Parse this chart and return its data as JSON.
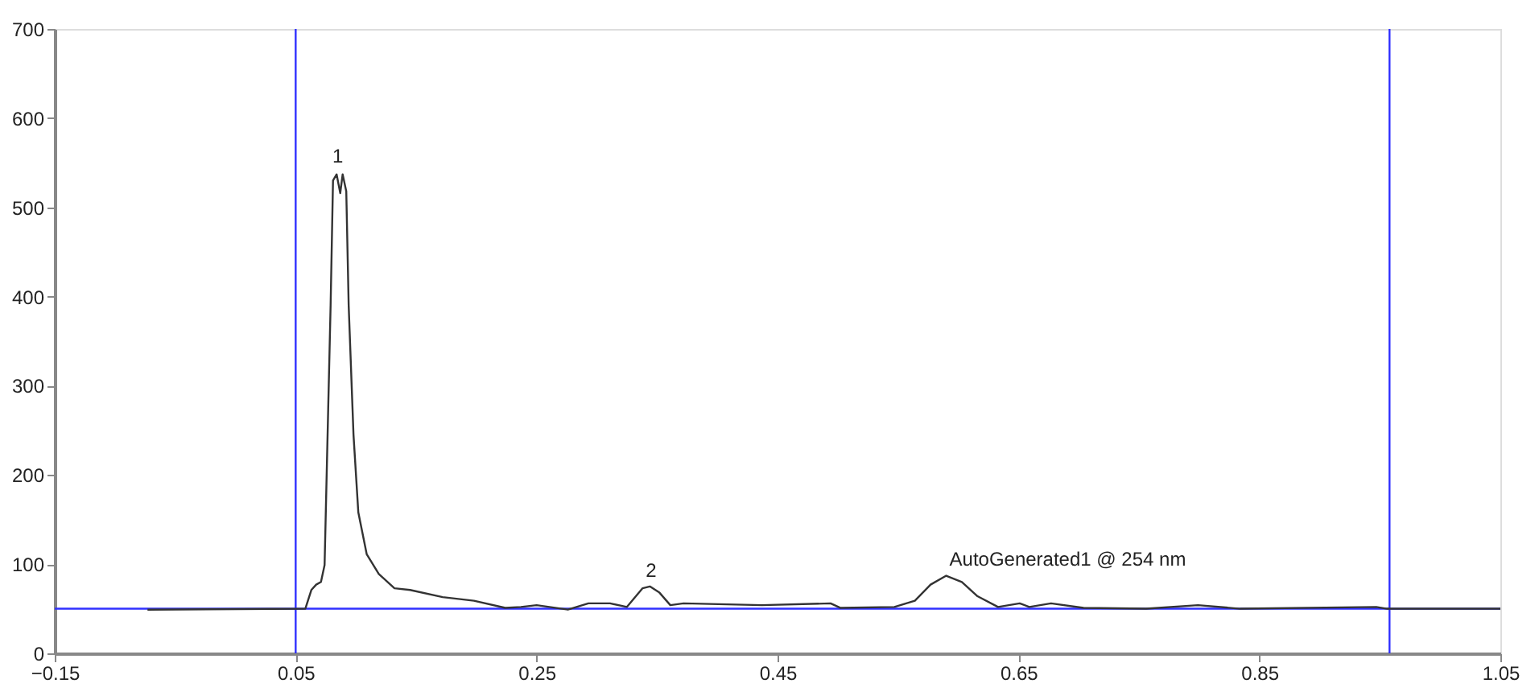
{
  "chart_data": {
    "type": "line",
    "x": [
      -0.073,
      0.058,
      0.063,
      0.067,
      0.071,
      0.074,
      0.076,
      0.079,
      0.081,
      0.084,
      0.087,
      0.089,
      0.092,
      0.094,
      0.098,
      0.102,
      0.109,
      0.119,
      0.132,
      0.145,
      0.172,
      0.198,
      0.224,
      0.237,
      0.25,
      0.276,
      0.293,
      0.311,
      0.325,
      0.338,
      0.344,
      0.352,
      0.361,
      0.372,
      0.437,
      0.494,
      0.502,
      0.547,
      0.564,
      0.577,
      0.59,
      0.603,
      0.616,
      0.633,
      0.651,
      0.659,
      0.677,
      0.704,
      0.756,
      0.799,
      0.834,
      0.947,
      0.956,
      1.05
    ],
    "series": [
      {
        "color": "#333333",
        "values": [
          49,
          50,
          71,
          77,
          80,
          99,
          216,
          390,
          530,
          537,
          516,
          537,
          518,
          390,
          245,
          158,
          111,
          89,
          73,
          71,
          63,
          59,
          51,
          52,
          54,
          49,
          56,
          56,
          52,
          73,
          75,
          68,
          54,
          56,
          54,
          56,
          51,
          52,
          59,
          77,
          87,
          80,
          64,
          52,
          56,
          52,
          56,
          51,
          50,
          54,
          50,
          52,
          50,
          50
        ]
      }
    ],
    "xlim": [
      -0.15,
      1.05
    ],
    "xticks": [
      -0.15,
      0.05,
      0.25,
      0.45,
      0.65,
      0.85,
      1.05
    ],
    "ylim": [
      0,
      700
    ],
    "yticks": [
      0,
      100,
      200,
      300,
      400,
      500,
      600,
      700
    ],
    "grid": false,
    "marker": "none",
    "line_style": "solid",
    "ref_lines": [
      {
        "axis": "x",
        "value": 0.05,
        "color": "#3030ff"
      },
      {
        "axis": "x",
        "value": 0.958,
        "color": "#3030ff"
      },
      {
        "axis": "y",
        "value": 50,
        "color": "#3030ff"
      }
    ],
    "annotations": [
      {
        "text": "1",
        "x": 0.085,
        "y": 545
      },
      {
        "text": "2",
        "x": 0.345,
        "y": 80
      },
      {
        "text": "AutoGenerated1 @ 254 nm",
        "x": 0.59,
        "y": 93
      }
    ]
  }
}
